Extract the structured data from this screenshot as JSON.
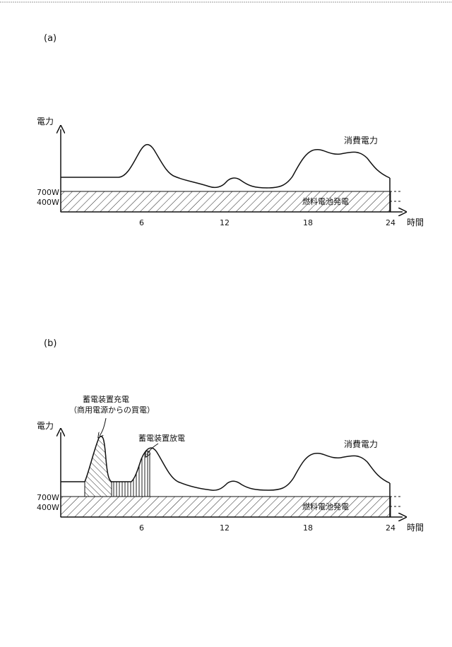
{
  "panel_a": {
    "label": "(a)",
    "y_axis_label": "電力",
    "x_axis_label": "時間",
    "level_700": "700W",
    "level_400": "400W",
    "curve_label": "消費電力",
    "band_label": "燃料電池発電",
    "x_ticks": [
      "6",
      "12",
      "18",
      "24"
    ]
  },
  "panel_b": {
    "label": "(b)",
    "y_axis_label": "電力",
    "x_axis_label": "時間",
    "level_700": "700W",
    "level_400": "400W",
    "curve_label": "消費電力",
    "band_label": "燃料電池発電",
    "charge_label_line1": "蓄電装置充電",
    "charge_label_line2": "（商用電源からの買電）",
    "discharge_label": "蓄電装置放電",
    "x_ticks": [
      "6",
      "12",
      "18",
      "24"
    ]
  }
}
